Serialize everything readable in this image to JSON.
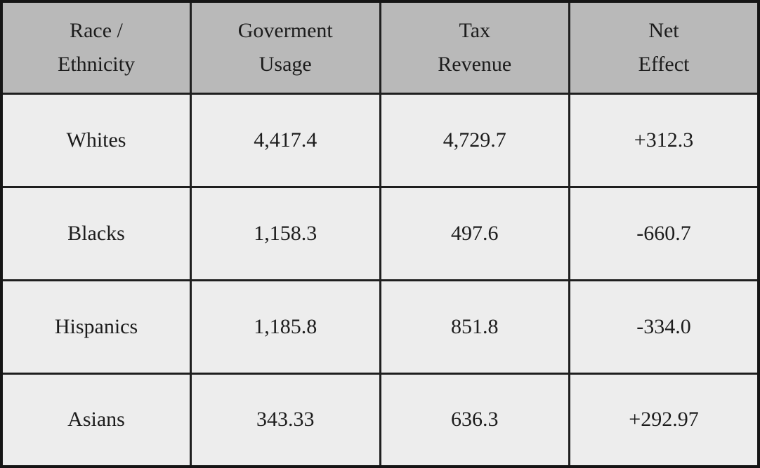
{
  "chart_data": {
    "type": "table",
    "title": "",
    "columns": [
      "Race / Ethnicity",
      "Goverment Usage",
      "Tax Revenue",
      "Net Effect"
    ],
    "column_display": [
      "Race /\nEthnicity",
      "Goverment\nUsage",
      "Tax\nRevenue",
      "Net\nEffect"
    ],
    "rows": [
      [
        "Whites",
        "4,417.4",
        "4,729.7",
        "+312.3"
      ],
      [
        "Blacks",
        "1,158.3",
        "497.6",
        "-660.7"
      ],
      [
        "Hispanics",
        "1,185.8",
        "851.8",
        "-334.0"
      ],
      [
        "Asians",
        "343.33",
        "636.3",
        "+292.97"
      ]
    ],
    "numeric_values": {
      "government_usage": [
        4417.4,
        1158.3,
        1185.8,
        343.33
      ],
      "tax_revenue": [
        4729.7,
        497.6,
        851.8,
        636.3
      ],
      "net_effect": [
        312.3,
        -660.7,
        -334.0,
        292.97
      ]
    }
  },
  "colors": {
    "header_bg": "#b9b9b9",
    "cell_bg": "#ededed",
    "border": "#1f1f1f",
    "text": "#1c1c1c"
  }
}
